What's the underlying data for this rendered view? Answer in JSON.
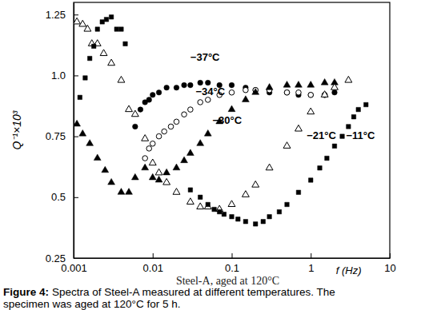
{
  "chart_data": {
    "type": "scatter",
    "log": "x",
    "grid": false,
    "xlabel": "f (Hz)",
    "ylabel": "Q⁻¹×10³",
    "subtitle": "Steel-A, aged at 120°C",
    "figure_label": "Figure 4:",
    "caption": [
      "Spectra of Steel-A measured at different temperatures. The",
      "specimen was aged at 120°C for 5 h."
    ],
    "xlim": [
      0.001,
      10
    ],
    "xticks": [
      0.001,
      0.01,
      0.1,
      1,
      10
    ],
    "ylim": [
      0.25,
      1.3
    ],
    "yticks": [
      0.25,
      0.5,
      0.75,
      {
        "value": 1,
        "label": "1.0"
      },
      1.25
    ],
    "annotations": [
      {
        "text": "−37°C",
        "x": 0.03,
        "y": 1.06
      },
      {
        "text": "−34°C",
        "x": 0.035,
        "y": 0.92
      },
      {
        "text": "−30°C",
        "x": 0.057,
        "y": 0.8
      },
      {
        "text": "−21°C",
        "x": 0.89,
        "y": 0.74
      },
      {
        "text": "−11°C",
        "x": 2.8,
        "y": 0.74
      }
    ],
    "series": [
      {
        "color": "#000000",
        "marker": "circle",
        "x": [
          0.006,
          0.007,
          0.008,
          0.009,
          0.01,
          0.012,
          0.015,
          0.02,
          0.025,
          0.03,
          0.04,
          0.05,
          0.07,
          0.1,
          0.15,
          0.2,
          0.3,
          0.5,
          0.7,
          1,
          1.5,
          2
        ],
        "values": [
          0.79,
          0.86,
          0.89,
          0.9,
          0.92,
          0.93,
          0.95,
          0.95,
          0.96,
          0.96,
          0.97,
          0.97,
          0.96,
          0.96,
          0.95,
          0.94,
          0.93,
          0.93,
          0.92,
          0.92,
          0.92,
          0.93
        ]
      },
      {
        "color": "#000000",
        "marker": "circle-open",
        "x": [
          0.008,
          0.009,
          0.01,
          0.012,
          0.014,
          0.017,
          0.02,
          0.025,
          0.03,
          0.04,
          0.05,
          0.07,
          0.1,
          0.15,
          0.2,
          0.3,
          0.5,
          0.7,
          1,
          1.5
        ],
        "values": [
          0.66,
          0.7,
          0.72,
          0.75,
          0.77,
          0.79,
          0.81,
          0.84,
          0.86,
          0.89,
          0.9,
          0.92,
          0.93,
          0.94,
          0.94,
          0.94,
          0.93,
          0.93,
          0.92,
          0.92
        ]
      },
      {
        "color": "#000000",
        "marker": "triangle",
        "x": [
          0.0011,
          0.0013,
          0.0016,
          0.002,
          0.0025,
          0.003,
          0.004,
          0.005,
          0.006,
          0.008,
          0.01,
          0.012,
          0.015,
          0.02,
          0.025,
          0.03,
          0.04,
          0.05,
          0.07,
          0.1,
          0.15,
          0.2,
          0.3,
          0.5,
          0.7,
          1,
          1.5,
          2
        ],
        "values": [
          0.8,
          0.76,
          0.72,
          0.66,
          0.61,
          0.56,
          0.52,
          0.52,
          0.58,
          0.62,
          0.58,
          0.57,
          0.6,
          0.62,
          0.65,
          0.68,
          0.72,
          0.76,
          0.81,
          0.86,
          0.9,
          0.93,
          0.95,
          0.96,
          0.96,
          0.96,
          0.97,
          0.97
        ]
      },
      {
        "color": "#000000",
        "marker": "triangle-open",
        "x": [
          0.0011,
          0.0013,
          0.0015,
          0.0017,
          0.002,
          0.0024,
          0.003,
          0.004,
          0.005,
          0.006,
          0.008,
          0.01,
          0.012,
          0.015,
          0.02,
          0.03,
          0.04,
          0.05,
          0.07,
          0.1,
          0.15,
          0.2,
          0.3,
          0.5,
          0.7,
          1,
          1.5,
          2,
          3
        ],
        "values": [
          1.22,
          1.21,
          1.19,
          1.13,
          1.13,
          1.09,
          1.05,
          0.98,
          0.86,
          0.84,
          0.74,
          0.64,
          0.6,
          0.56,
          0.52,
          0.48,
          0.46,
          0.46,
          0.45,
          0.47,
          0.51,
          0.55,
          0.62,
          0.71,
          0.78,
          0.85,
          0.92,
          0.95,
          0.98
        ]
      },
      {
        "color": "#000000",
        "marker": "square",
        "x": [
          0.0012,
          0.0014,
          0.0016,
          0.0018,
          0.002,
          0.0023,
          0.0026,
          0.003,
          0.0035,
          0.004,
          0.0045,
          0.03,
          0.04,
          0.05,
          0.06,
          0.07,
          0.08,
          0.1,
          0.12,
          0.15,
          0.2,
          0.25,
          0.3,
          0.4,
          0.5,
          0.7,
          1,
          1.3,
          1.6,
          2,
          2.5,
          3,
          3.5,
          4,
          5
        ],
        "values": [
          0.91,
          0.99,
          1.07,
          1.12,
          1.19,
          1.22,
          1.23,
          1.24,
          1.19,
          1.19,
          1.13,
          0.53,
          0.5,
          0.47,
          0.45,
          0.44,
          0.43,
          0.42,
          0.41,
          0.4,
          0.39,
          0.4,
          0.42,
          0.44,
          0.47,
          0.52,
          0.57,
          0.62,
          0.66,
          0.71,
          0.75,
          0.79,
          0.83,
          0.86,
          0.88
        ]
      }
    ]
  }
}
